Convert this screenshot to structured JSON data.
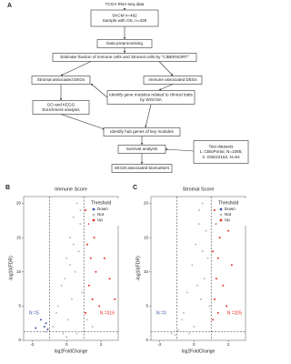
{
  "flowchart": {
    "label": "A",
    "nodes": [
      {
        "lines": [
          "TCGA RNA-seq data"
        ]
      },
      {
        "lines": [
          "SKCM n=462",
          "Sample with OS, n=429"
        ]
      },
      {
        "lines": [
          "Data preprocessing"
        ]
      },
      {
        "lines": [
          "Estimate fraction of immune cells and Stromal cells by \"CIBERSORT\""
        ]
      },
      {
        "lines": [
          "Stromal associated DEGs"
        ]
      },
      {
        "lines": [
          "Immune associated DEGs"
        ]
      },
      {
        "lines": [
          "Identify gene modules related to clinical traits",
          "by WGCNA"
        ]
      },
      {
        "lines": [
          "GO and KEGG",
          "Enrichment analysis"
        ]
      },
      {
        "lines": [
          "Identify hub genes of key modules"
        ]
      },
      {
        "lines": [
          "Survival analysis"
        ]
      },
      {
        "lines": [
          "Test datasets",
          "1. CBioPortal, N=1085;",
          "2. GSE22153, N=54"
        ]
      },
      {
        "lines": [
          "SKCM associated biomarkers"
        ]
      }
    ]
  },
  "chart_data": [
    {
      "type": "scatter",
      "panel": "B",
      "title": "Immune Score",
      "x_label": "log2FoldChange",
      "y_label": "-log10(FDR)",
      "xlim": [
        -2.5,
        3
      ],
      "ylim": [
        0,
        21
      ],
      "xticks": [
        -2,
        0,
        2
      ],
      "yticks": [
        0,
        5,
        10,
        15,
        20
      ],
      "cutoffs": {
        "x": [
          -1,
          1
        ],
        "y": 1.3
      },
      "legend_title": "Threshold",
      "legend": "top-right",
      "annotations": [
        "N =5",
        "N =316"
      ],
      "series": [
        {
          "name": "Down",
          "color": "#3a53a4",
          "x": [
            -1.3,
            -1.5,
            -1.2,
            -1.8,
            -1.1
          ],
          "y": [
            2,
            3,
            2.5,
            1.8,
            1.6
          ]
        },
        {
          "name": "Not",
          "color": "#bdbdbd",
          "x": [
            -0.8,
            -0.5,
            -0.3,
            0,
            0.2,
            0.4,
            0.6,
            0.8,
            0.1,
            -0.2,
            0.3,
            0.5,
            0.7,
            -0.6,
            -0.1,
            0.9,
            1.2,
            1.5,
            -1.2,
            0,
            0.6,
            0.2,
            0.4,
            0.8
          ],
          "y": [
            2,
            5,
            8,
            12,
            15,
            18,
            20,
            17,
            3,
            1,
            6,
            10,
            13,
            4,
            9,
            7,
            3,
            2,
            1.2,
            0.5,
            1,
            11,
            14,
            19
          ]
        },
        {
          "name": "Up",
          "color": "#e0302a",
          "x": [
            1.1,
            1.3,
            1.4,
            1.6,
            1.8,
            2,
            1.2,
            1.5,
            1.7,
            2.2,
            2.5,
            1.9,
            1.3,
            2.8,
            1.1
          ],
          "y": [
            4,
            8,
            12,
            15,
            18,
            20,
            14,
            6,
            10,
            12,
            9,
            5,
            17,
            6,
            19
          ]
        }
      ]
    },
    {
      "type": "scatter",
      "panel": "C",
      "title": "Stromal Score",
      "x_label": "log2FoldChange",
      "y_label": "-log10(FDR)",
      "xlim": [
        -2.5,
        3
      ],
      "ylim": [
        0,
        21
      ],
      "xticks": [
        -2,
        0,
        2
      ],
      "yticks": [
        0,
        5,
        10,
        15,
        20
      ],
      "cutoffs": {
        "x": [
          -1,
          1
        ],
        "y": 1.3
      },
      "legend_title": "Threshold",
      "legend": "top-right",
      "annotations": [
        "N =0",
        "N =205"
      ],
      "series": [
        {
          "name": "Down",
          "color": "#3a53a4",
          "x": [],
          "y": []
        },
        {
          "name": "Not",
          "color": "#bdbdbd",
          "x": [
            -0.9,
            -0.6,
            -0.4,
            -0.1,
            0.1,
            0.3,
            0.5,
            0.7,
            0,
            -0.3,
            0.4,
            0.6,
            0.8,
            -0.7,
            0.2,
            0.9,
            -1.3,
            -1.1,
            0.3,
            0.5
          ],
          "y": [
            1.5,
            4,
            7,
            11,
            14,
            17,
            20,
            16,
            2,
            1,
            6,
            9,
            12,
            3,
            8,
            5,
            1,
            0.8,
            19,
            13
          ]
        },
        {
          "name": "Up",
          "color": "#e0302a",
          "x": [
            1.1,
            1.2,
            1.3,
            1.4,
            1.5,
            1.6,
            1.8,
            2,
            1.2,
            1.4,
            1.7,
            2.2,
            1.1,
            1.3,
            1.9
          ],
          "y": [
            3,
            6,
            9,
            12,
            15,
            18,
            20,
            16,
            19,
            4,
            8,
            11,
            13,
            17,
            5
          ]
        }
      ]
    }
  ]
}
